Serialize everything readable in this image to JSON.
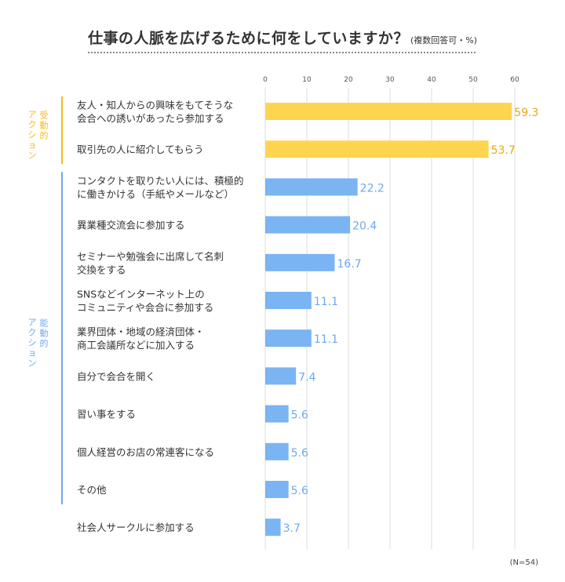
{
  "title": "仕事の人脈を広げるために何をしていますか？",
  "subtitle": "(複数回答可・%)",
  "note": "(N=54)",
  "groups": [
    {
      "label": "受動的アクション",
      "color": "#F5BA18",
      "start": 0,
      "end": 1
    },
    {
      "label": "能動的アクション",
      "color": "#6FA8EE",
      "start": 2,
      "end": 10
    }
  ],
  "colors": {
    "passive_bar": "#FFD54F",
    "passive_text": "#E6A81A",
    "active_bar": "#7AB4F2",
    "active_text": "#6FA8EE",
    "gridline": "#dddddd"
  },
  "chart_data": {
    "type": "bar",
    "orientation": "horizontal",
    "xlim": [
      0,
      60
    ],
    "xticks": [
      0,
      10,
      20,
      30,
      40,
      50,
      60
    ],
    "grid": true,
    "categories": [
      [
        "友人・知人からの興味をもてそうな",
        "会合への誘いがあったら参加する"
      ],
      [
        "取引先の人に紹介してもらう"
      ],
      [
        "コンタクトを取りたい人には、積極的",
        "に働きかける（手紙やメールなど）"
      ],
      [
        "異業種交流会に参加する"
      ],
      [
        "セミナーや勉強会に出席して名刺",
        "交換をする"
      ],
      [
        "SNSなどインターネット上の",
        "コミュニティや会合に参加する"
      ],
      [
        "業界団体・地域の経済団体・",
        "商工会議所などに加入する"
      ],
      [
        "自分で会合を開く"
      ],
      [
        "習い事をする"
      ],
      [
        "個人経営のお店の常連客になる"
      ],
      [
        "その他"
      ],
      [
        "社会人サークルに参加する"
      ]
    ],
    "values": [
      59.3,
      53.7,
      22.2,
      20.4,
      16.7,
      11.1,
      11.1,
      7.4,
      5.6,
      5.6,
      5.6,
      3.7
    ],
    "value_labels": [
      "59.3",
      "53.7",
      "22.2",
      "20.4",
      "16.7",
      "11.1",
      "11.1",
      "7.4",
      "5.6",
      "5.6",
      "5.6",
      "3.7"
    ]
  }
}
